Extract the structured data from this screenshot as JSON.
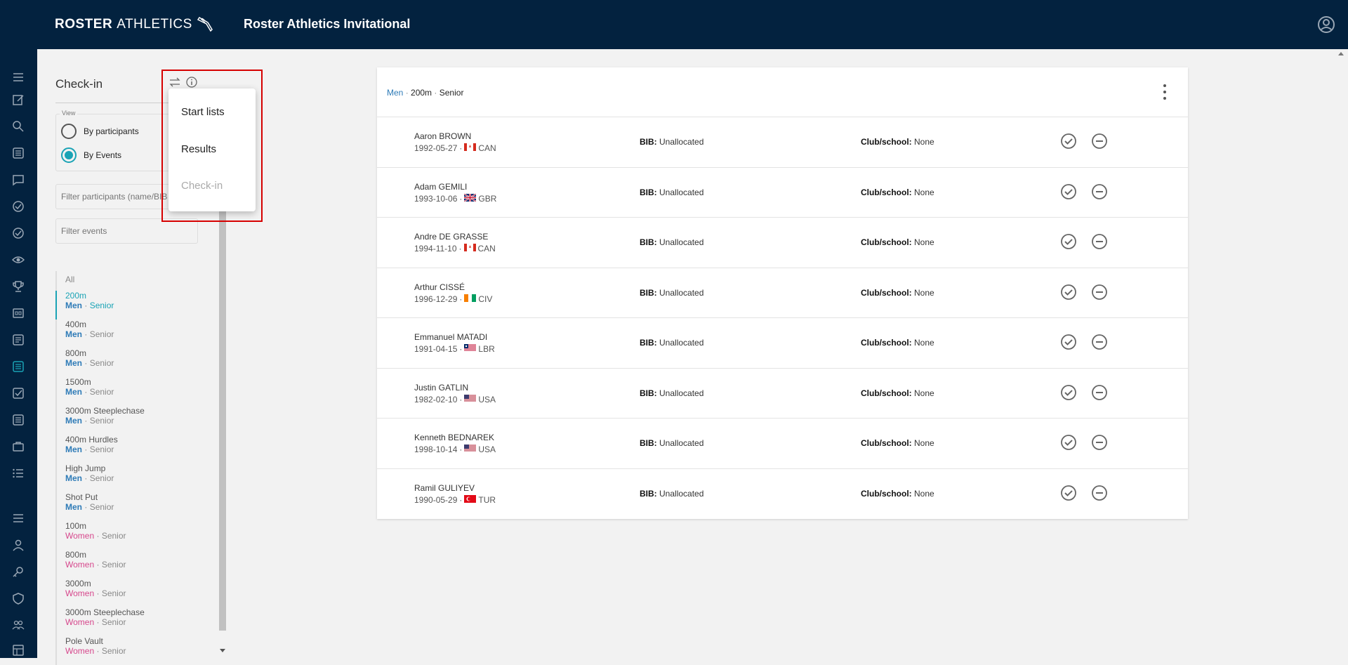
{
  "header": {
    "logo_bold": "ROSTER",
    "logo_thin": "ATHLETICS",
    "title": "Roster Athletics Invitational"
  },
  "panel": {
    "title": "Check-in",
    "view_legend": "View",
    "radio_participants": "By participants",
    "radio_events": "By Events",
    "selected_view": "By Events",
    "filter_participants_placeholder": "Filter participants (name/BIB",
    "filter_events_placeholder": "Filter events",
    "all_label": "All",
    "events": [
      {
        "name": "200m",
        "gender": "Men",
        "category": "Senior",
        "active": true
      },
      {
        "name": "400m",
        "gender": "Men",
        "category": "Senior"
      },
      {
        "name": "800m",
        "gender": "Men",
        "category": "Senior"
      },
      {
        "name": "1500m",
        "gender": "Men",
        "category": "Senior"
      },
      {
        "name": "3000m Steeplechase",
        "gender": "Men",
        "category": "Senior"
      },
      {
        "name": "400m Hurdles",
        "gender": "Men",
        "category": "Senior"
      },
      {
        "name": "High Jump",
        "gender": "Men",
        "category": "Senior"
      },
      {
        "name": "Shot Put",
        "gender": "Men",
        "category": "Senior"
      },
      {
        "name": "100m",
        "gender": "Women",
        "category": "Senior"
      },
      {
        "name": "800m",
        "gender": "Women",
        "category": "Senior"
      },
      {
        "name": "3000m",
        "gender": "Women",
        "category": "Senior"
      },
      {
        "name": "3000m Steeplechase",
        "gender": "Women",
        "category": "Senior"
      },
      {
        "name": "Pole Vault",
        "gender": "Women",
        "category": "Senior"
      }
    ],
    "separator": "·"
  },
  "menu": {
    "items": [
      "Start lists",
      "Results",
      "Check-in"
    ],
    "disabled_item": "Check-in"
  },
  "card": {
    "gender": "Men",
    "event": "200m",
    "category": "Senior",
    "bib_label": "BIB:",
    "club_label": "Club/school:",
    "athletes": [
      {
        "name": "Aaron BROWN",
        "dob": "1992-05-27",
        "country": "CAN",
        "bib": "Unallocated",
        "club": "None"
      },
      {
        "name": "Adam GEMILI",
        "dob": "1993-10-06",
        "country": "GBR",
        "bib": "Unallocated",
        "club": "None"
      },
      {
        "name": "Andre DE GRASSE",
        "dob": "1994-11-10",
        "country": "CAN",
        "bib": "Unallocated",
        "club": "None"
      },
      {
        "name": "Arthur CISSÉ",
        "dob": "1996-12-29",
        "country": "CIV",
        "bib": "Unallocated",
        "club": "None"
      },
      {
        "name": "Emmanuel MATADI",
        "dob": "1991-04-15",
        "country": "LBR",
        "bib": "Unallocated",
        "club": "None"
      },
      {
        "name": "Justin GATLIN",
        "dob": "1982-02-10",
        "country": "USA",
        "bib": "Unallocated",
        "club": "None"
      },
      {
        "name": "Kenneth BEDNAREK",
        "dob": "1998-10-14",
        "country": "USA",
        "bib": "Unallocated",
        "club": "None"
      },
      {
        "name": "Ramil GULIYEV",
        "dob": "1990-05-29",
        "country": "TUR",
        "bib": "Unallocated",
        "club": "None"
      }
    ]
  },
  "colors": {
    "navy": "#03223f",
    "accent": "#1aa3b5",
    "men": "#2e7bb7",
    "women": "#d6478c",
    "highlight": "#d60000"
  },
  "icons": {
    "sidebar": [
      "menu-icon",
      "edit-icon",
      "search-icon",
      "list-icon",
      "chat-icon",
      "check-circle-icon",
      "check-circle-icon",
      "eye-icon",
      "trophy-icon",
      "scoreboard-icon",
      "document-icon",
      "list-active-icon",
      "checkbox-icon",
      "document-icon",
      "briefcase-icon",
      "bullet-list-icon",
      "menu-icon",
      "person-icon",
      "key-icon",
      "shield-icon",
      "group-icon",
      "table-icon"
    ]
  }
}
